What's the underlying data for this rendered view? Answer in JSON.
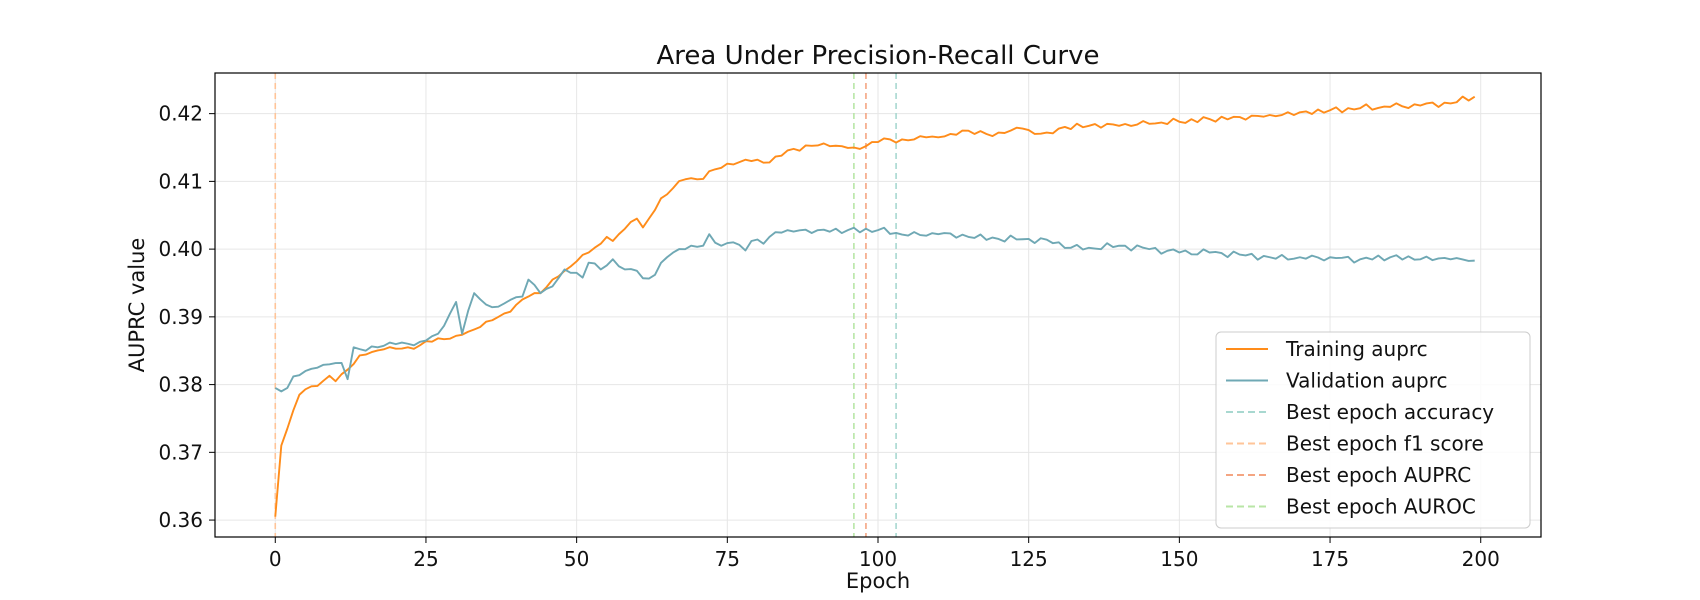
{
  "chart_data": {
    "type": "line",
    "title": "Area Under Precision-Recall Curve",
    "xlabel": "Epoch",
    "ylabel": "AUPRC value",
    "xlim": [
      -10,
      210
    ],
    "ylim": [
      0.3575,
      0.426
    ],
    "xticks": [
      0,
      25,
      50,
      75,
      100,
      125,
      150,
      175,
      200
    ],
    "yticks": [
      0.36,
      0.37,
      0.38,
      0.39,
      0.4,
      0.41,
      0.42
    ],
    "ytick_labels": [
      "0.36",
      "0.37",
      "0.38",
      "0.39",
      "0.40",
      "0.41",
      "0.42"
    ],
    "grid": true,
    "legend_position": "lower-right",
    "series": [
      {
        "name": "Training auprc",
        "color": "#ff8c1a",
        "anchors": [
          [
            0,
            0.3605
          ],
          [
            1,
            0.371
          ],
          [
            2,
            0.3735
          ],
          [
            3,
            0.3762
          ],
          [
            4,
            0.3785
          ],
          [
            5,
            0.3793
          ],
          [
            7,
            0.3798
          ],
          [
            9,
            0.3813
          ],
          [
            10,
            0.3805
          ],
          [
            12,
            0.3822
          ],
          [
            14,
            0.3843
          ],
          [
            16,
            0.3848
          ],
          [
            18,
            0.3852
          ],
          [
            20,
            0.3853
          ],
          [
            22,
            0.3855
          ],
          [
            24,
            0.3858
          ],
          [
            25,
            0.3864
          ],
          [
            28,
            0.3867
          ],
          [
            30,
            0.3872
          ],
          [
            32,
            0.3878
          ],
          [
            34,
            0.3885
          ],
          [
            36,
            0.3895
          ],
          [
            38,
            0.3905
          ],
          [
            40,
            0.3918
          ],
          [
            42,
            0.393
          ],
          [
            44,
            0.3935
          ],
          [
            46,
            0.3955
          ],
          [
            48,
            0.3968
          ],
          [
            50,
            0.3982
          ],
          [
            52,
            0.3995
          ],
          [
            54,
            0.4008
          ],
          [
            55,
            0.4018
          ],
          [
            56,
            0.4012
          ],
          [
            58,
            0.403
          ],
          [
            60,
            0.4045
          ],
          [
            61,
            0.4032
          ],
          [
            62,
            0.4045
          ],
          [
            64,
            0.4075
          ],
          [
            66,
            0.409
          ],
          [
            68,
            0.4103
          ],
          [
            70,
            0.4103
          ],
          [
            72,
            0.4115
          ],
          [
            74,
            0.412
          ],
          [
            76,
            0.4125
          ],
          [
            78,
            0.4132
          ],
          [
            80,
            0.4132
          ],
          [
            82,
            0.4128
          ],
          [
            84,
            0.4138
          ],
          [
            86,
            0.4148
          ],
          [
            88,
            0.4153
          ],
          [
            90,
            0.4153
          ],
          [
            92,
            0.4152
          ],
          [
            94,
            0.4152
          ],
          [
            96,
            0.415
          ],
          [
            98,
            0.4152
          ],
          [
            100,
            0.4158
          ],
          [
            102,
            0.4162
          ],
          [
            104,
            0.4162
          ],
          [
            106,
            0.4162
          ],
          [
            108,
            0.4165
          ],
          [
            110,
            0.4165
          ],
          [
            112,
            0.417
          ],
          [
            114,
            0.4175
          ],
          [
            116,
            0.417
          ],
          [
            118,
            0.417
          ],
          [
            120,
            0.4172
          ],
          [
            122,
            0.4175
          ],
          [
            124,
            0.4178
          ],
          [
            126,
            0.417
          ],
          [
            128,
            0.4172
          ],
          [
            130,
            0.4178
          ],
          [
            135,
            0.4182
          ],
          [
            140,
            0.4182
          ],
          [
            145,
            0.4185
          ],
          [
            150,
            0.4188
          ],
          [
            155,
            0.4192
          ],
          [
            160,
            0.4195
          ],
          [
            165,
            0.4198
          ],
          [
            170,
            0.4202
          ],
          [
            175,
            0.4205
          ],
          [
            180,
            0.4208
          ],
          [
            185,
            0.421
          ],
          [
            190,
            0.4212
          ],
          [
            195,
            0.4215
          ],
          [
            199,
            0.4225
          ]
        ]
      },
      {
        "name": "Validation auprc",
        "color": "#6fa8b4",
        "anchors": [
          [
            0,
            0.3795
          ],
          [
            1,
            0.379
          ],
          [
            2,
            0.3795
          ],
          [
            3,
            0.3812
          ],
          [
            5,
            0.382
          ],
          [
            7,
            0.3825
          ],
          [
            9,
            0.383
          ],
          [
            11,
            0.3832
          ],
          [
            12,
            0.3808
          ],
          [
            13,
            0.3855
          ],
          [
            15,
            0.385
          ],
          [
            17,
            0.3855
          ],
          [
            19,
            0.3862
          ],
          [
            21,
            0.3862
          ],
          [
            23,
            0.3858
          ],
          [
            25,
            0.3865
          ],
          [
            27,
            0.3875
          ],
          [
            29,
            0.3905
          ],
          [
            30,
            0.3922
          ],
          [
            31,
            0.3875
          ],
          [
            33,
            0.3935
          ],
          [
            35,
            0.3918
          ],
          [
            37,
            0.3915
          ],
          [
            39,
            0.3925
          ],
          [
            41,
            0.393
          ],
          [
            42,
            0.3955
          ],
          [
            44,
            0.3935
          ],
          [
            46,
            0.3945
          ],
          [
            48,
            0.397
          ],
          [
            50,
            0.3965
          ],
          [
            51,
            0.3958
          ],
          [
            52,
            0.398
          ],
          [
            54,
            0.397
          ],
          [
            56,
            0.3985
          ],
          [
            58,
            0.397
          ],
          [
            60,
            0.3968
          ],
          [
            61,
            0.3957
          ],
          [
            63,
            0.3962
          ],
          [
            65,
            0.3988
          ],
          [
            67,
            0.4
          ],
          [
            69,
            0.4005
          ],
          [
            71,
            0.4005
          ],
          [
            72,
            0.4022
          ],
          [
            74,
            0.4005
          ],
          [
            76,
            0.401
          ],
          [
            78,
            0.3998
          ],
          [
            79,
            0.4012
          ],
          [
            81,
            0.4008
          ],
          [
            83,
            0.4025
          ],
          [
            85,
            0.4028
          ],
          [
            90,
            0.4028
          ],
          [
            95,
            0.4028
          ],
          [
            100,
            0.4028
          ],
          [
            105,
            0.402
          ],
          [
            110,
            0.4022
          ],
          [
            115,
            0.4018
          ],
          [
            120,
            0.4015
          ],
          [
            125,
            0.4015
          ],
          [
            130,
            0.401
          ],
          [
            132,
            0.4002
          ],
          [
            135,
            0.4002
          ],
          [
            140,
            0.4005
          ],
          [
            145,
            0.4
          ],
          [
            150,
            0.3995
          ],
          [
            155,
            0.3995
          ],
          [
            160,
            0.3992
          ],
          [
            165,
            0.3988
          ],
          [
            170,
            0.3988
          ],
          [
            175,
            0.3988
          ],
          [
            180,
            0.3985
          ],
          [
            185,
            0.3988
          ],
          [
            190,
            0.3985
          ],
          [
            195,
            0.3985
          ],
          [
            199,
            0.3983
          ]
        ]
      }
    ],
    "vlines": [
      {
        "name": "Best epoch accuracy",
        "x": 103,
        "color": "#a8d8d0"
      },
      {
        "name": "Best epoch f1 score",
        "x": 0,
        "color": "#ffc599"
      },
      {
        "name": "Best epoch AUPRC",
        "x": 98,
        "color": "#f4a582"
      },
      {
        "name": "Best epoch AUROC",
        "x": 96,
        "color": "#b8e6a6"
      }
    ]
  }
}
